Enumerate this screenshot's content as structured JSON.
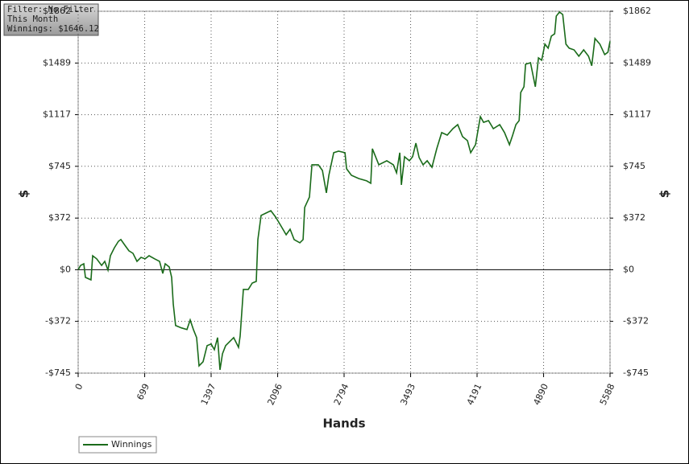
{
  "chart_data": {
    "type": "line",
    "annotations": [
      "Filter: No Filter",
      "This Month",
      "Winnings: $1646.12"
    ],
    "xlabel": "Hands",
    "ylabel": "$",
    "y2label": "$",
    "xlim": [
      0,
      5588
    ],
    "xticks": [
      0,
      699,
      1397,
      2096,
      2794,
      3493,
      4191,
      4890,
      5588
    ],
    "ylim": [
      -745,
      1862
    ],
    "yticks": [
      {
        "value": -745,
        "label": "-$745"
      },
      {
        "value": -372,
        "label": "-$372"
      },
      {
        "value": 0,
        "label": "$0"
      },
      {
        "value": 372,
        "label": "$372"
      },
      {
        "value": 745,
        "label": "$745"
      },
      {
        "value": 1117,
        "label": "$1117"
      },
      {
        "value": 1489,
        "label": "$1489"
      },
      {
        "value": 1862,
        "label": "$1862"
      }
    ],
    "y2lim": [
      -745,
      1862
    ],
    "y2ticks": [
      {
        "value": -745,
        "label": "-$745"
      },
      {
        "value": -372,
        "label": "-$372"
      },
      {
        "value": 0,
        "label": "$0"
      },
      {
        "value": 372,
        "label": "$372"
      },
      {
        "value": 745,
        "label": "$745"
      },
      {
        "value": 1117,
        "label": "$1117"
      },
      {
        "value": 1489,
        "label": "$1489"
      },
      {
        "value": 1862,
        "label": "$1862"
      }
    ],
    "grid": true,
    "x": [
      0,
      25,
      59,
      76,
      135,
      152,
      195,
      246,
      279,
      313,
      339,
      381,
      423,
      449,
      491,
      533,
      576,
      618,
      660,
      703,
      745,
      804,
      855,
      889,
      914,
      957,
      982,
      999,
      1024,
      1084,
      1143,
      1177,
      1211,
      1245,
      1270,
      1312,
      1355,
      1397,
      1431,
      1465,
      1490,
      1516,
      1549,
      1592,
      1634,
      1685,
      1702,
      1736,
      1787,
      1829,
      1871,
      1888,
      1922,
      1973,
      2024,
      2075,
      2126,
      2185,
      2227,
      2269,
      2329,
      2363,
      2380,
      2430,
      2456,
      2523,
      2566,
      2608,
      2634,
      2685,
      2736,
      2803,
      2820,
      2871,
      2947,
      3031,
      3074,
      3091,
      3125,
      3159,
      3243,
      3311,
      3345,
      3379,
      3396,
      3429,
      3480,
      3514,
      3548,
      3582,
      3624,
      3667,
      3717,
      3768,
      3819,
      3878,
      3937,
      3988,
      4039,
      4090,
      4124,
      4175,
      4226,
      4260,
      4311,
      4362,
      4429,
      4480,
      4531,
      4565,
      4599,
      4633,
      4650,
      4684,
      4701,
      4752,
      4803,
      4836,
      4870,
      4904,
      4938,
      4972,
      5006,
      5023,
      5057,
      5091,
      5125,
      5159,
      5210,
      5260,
      5311,
      5362,
      5396,
      5430,
      5481,
      5532,
      5566,
      5588
    ],
    "series": [
      {
        "name": "Winnings",
        "color": "#1a6b1a",
        "values": [
          0,
          31,
          43,
          -55,
          -73,
          101,
          78,
          31,
          60,
          -3,
          101,
          159,
          205,
          217,
          176,
          136,
          118,
          60,
          89,
          78,
          101,
          78,
          60,
          -27,
          43,
          20,
          -55,
          -246,
          -402,
          -419,
          -431,
          -362,
          -431,
          -489,
          -692,
          -663,
          -547,
          -535,
          -576,
          -489,
          -721,
          -605,
          -547,
          -518,
          -489,
          -559,
          -478,
          -142,
          -142,
          -96,
          -84,
          217,
          391,
          408,
          425,
          379,
          321,
          252,
          292,
          217,
          194,
          217,
          449,
          524,
          756,
          756,
          715,
          553,
          680,
          843,
          854,
          843,
          727,
          680,
          657,
          640,
          623,
          872,
          814,
          756,
          785,
          756,
          698,
          843,
          611,
          814,
          785,
          814,
          912,
          808,
          756,
          785,
          738,
          872,
          988,
          970,
          1016,
          1045,
          959,
          930,
          843,
          901,
          1103,
          1062,
          1074,
          1016,
          1045,
          988,
          901,
          970,
          1045,
          1074,
          1277,
          1318,
          1480,
          1491,
          1318,
          1526,
          1509,
          1625,
          1596,
          1683,
          1700,
          1827,
          1856,
          1839,
          1625,
          1596,
          1584,
          1538,
          1584,
          1538,
          1469,
          1666,
          1625,
          1550,
          1567,
          1646
        ]
      }
    ]
  }
}
